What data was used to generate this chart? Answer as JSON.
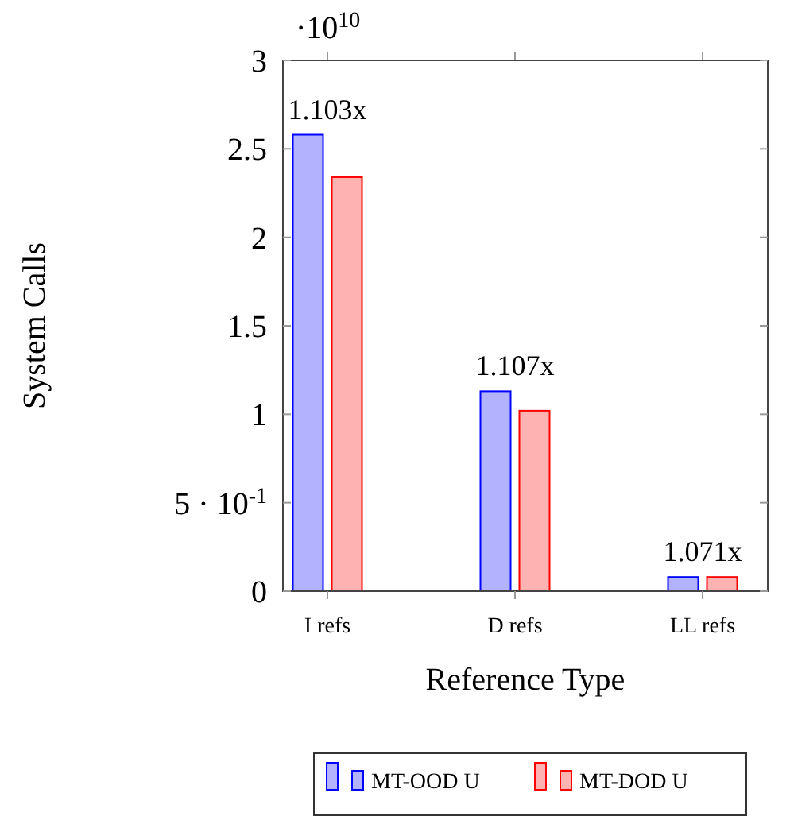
{
  "chart_data": {
    "type": "bar",
    "ylabel": "System Calls",
    "xlabel": "Reference Type",
    "categories": [
      "I refs",
      "D refs",
      "LL refs"
    ],
    "series": [
      {
        "name": "MT-OOD U",
        "color": "#0000ff",
        "values": [
          2.58,
          1.13,
          0.08
        ]
      },
      {
        "name": "MT-DOD U",
        "color": "#ff0000",
        "values": [
          2.34,
          1.02,
          0.08
        ]
      }
    ],
    "ylim": [
      0,
      3
    ],
    "yticks": [
      0,
      {
        "value": 0.5,
        "label": "5 · 10$^{-1}$"
      },
      1,
      1.5,
      2,
      2.5,
      3
    ],
    "annotations": [
      "·10$^{10}$",
      {
        "text": "1.103x",
        "x": "I refs",
        "y": 2.58
      },
      {
        "text": "1.107x",
        "x": "D refs",
        "y": 1.13
      },
      {
        "text": "1.071x",
        "x": "LL refs",
        "y": 0.08
      }
    ],
    "grid": false,
    "legend": "bottom"
  }
}
